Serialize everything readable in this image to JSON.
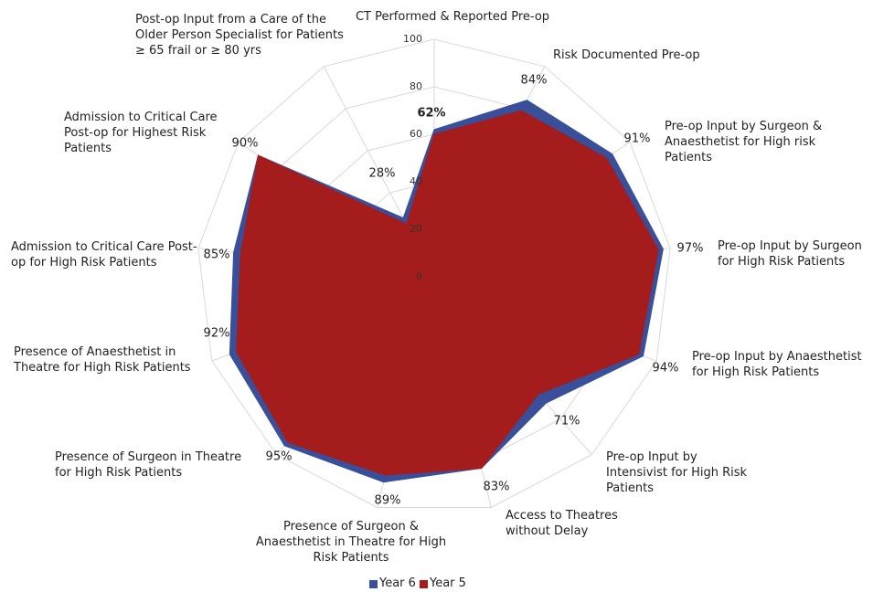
{
  "chart_data": {
    "type": "radar",
    "categories": [
      "CT Performed & Reported Pre-op",
      "Risk Documented Pre-op",
      "Pre-op Input by Surgeon & Anaesthetist for High risk Patients",
      "Pre-op Input by Surgeon for High Risk Patients",
      "Pre-op Input by Anaesthetist for High Risk Patients",
      "Pre-op Input by Intensivist for High Risk Patients",
      "Access to Theatres without Delay",
      "Presence of Surgeon & Anaesthetist in Theatre for High Risk Patients",
      "Presence of Surgeon in Theatre for High Risk Patients",
      "Presence of Anaesthetist in Theatre for High Risk Patients",
      "Admission to Critical Care Post-op for High Risk Patients",
      "Admission to Critical Care Post-op for Highest Risk Patients",
      "Post-op Input from a Care of the Older Person Specialist for Patients ≥ 65 frail or ≥ 80 yrs"
    ],
    "series": [
      {
        "name": "Year 6",
        "color": "#3a4f9a",
        "values": [
          62,
          84,
          91,
          97,
          94,
          71,
          83,
          89,
          95,
          92,
          85,
          90,
          28
        ],
        "value_labels": [
          "62%",
          "84%",
          "91%",
          "97%",
          "94%",
          "71%",
          "83%",
          "89%",
          "95%",
          "92%",
          "85%",
          "90%",
          "28%"
        ]
      },
      {
        "name": "Year 5",
        "color": "#a51c1c",
        "values": [
          60,
          79,
          88,
          95,
          92,
          66,
          83,
          86,
          93,
          89,
          82,
          90,
          25
        ]
      }
    ],
    "ylim": [
      0,
      100
    ],
    "yticks": [
      0,
      20,
      40,
      60,
      80,
      100
    ],
    "grid": true,
    "legend": "bottom"
  }
}
